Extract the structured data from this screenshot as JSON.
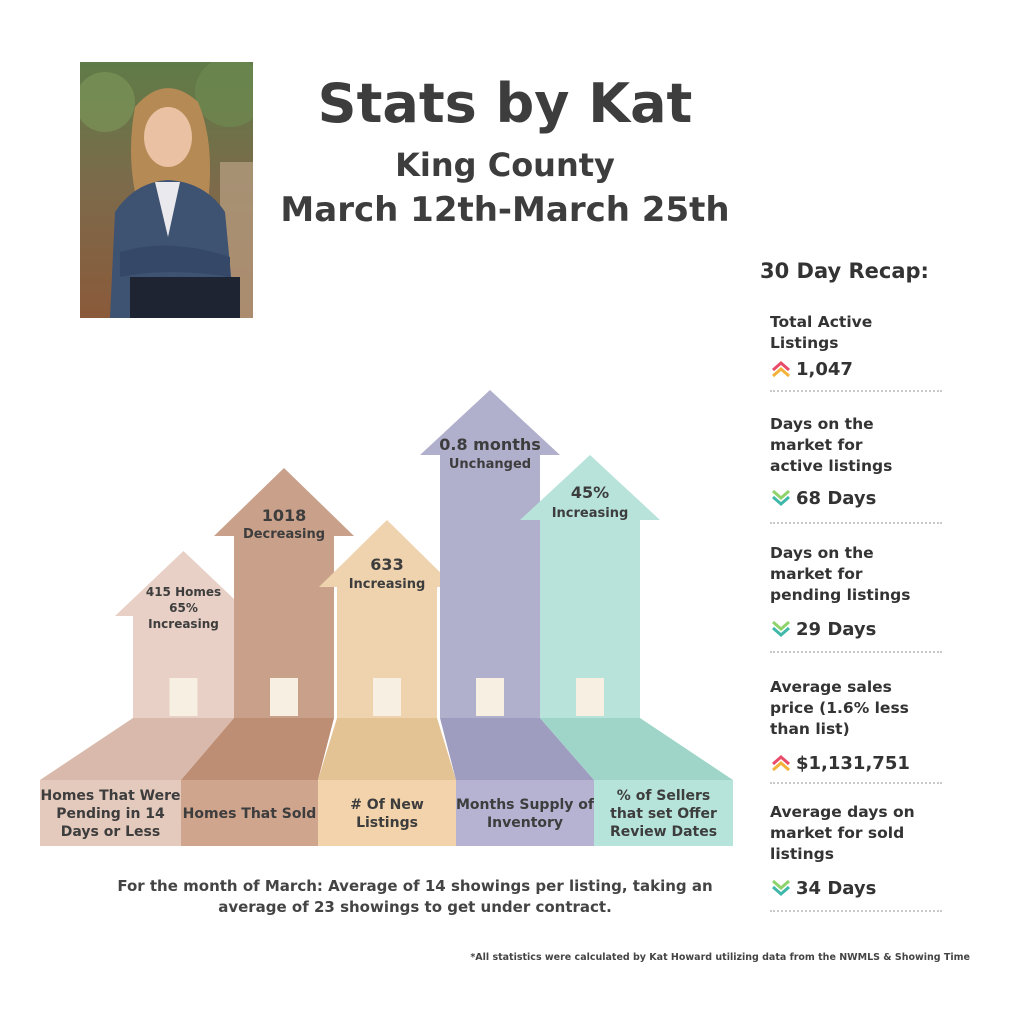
{
  "header": {
    "title": "Stats by Kat",
    "county": "King County",
    "dates": "March 12th-March 25th"
  },
  "recap": {
    "title": "30 Day Recap:",
    "items": [
      {
        "label": "Total Active Listings",
        "value": "1,047",
        "trend": "up"
      },
      {
        "label": "Days on the market for active listings",
        "value": "68 Days",
        "trend": "down"
      },
      {
        "label": "Days on the market for pending listings",
        "value": "29 Days",
        "trend": "down"
      },
      {
        "label": "Average sales price (1.6% less than list)",
        "value": "$1,131,751",
        "trend": "up"
      },
      {
        "label": "Average days on market for sold listings",
        "value": "34 Days",
        "trend": "down"
      }
    ]
  },
  "stats": [
    {
      "value_lines": [
        "415 Homes",
        "65%",
        "Increasing"
      ],
      "base_label": "Homes That Were Pending in 14 Days or Less",
      "colors": {
        "arrow": "#e8d0c6",
        "base": "#e4c9bd",
        "floor": "#d9b9ac"
      }
    },
    {
      "value_lines": [
        "1018",
        "Decreasing"
      ],
      "base_label": "Homes That Sold",
      "colors": {
        "arrow": "#c9a18a",
        "base": "#d0a58e",
        "floor": "#be8e74"
      }
    },
    {
      "value_lines": [
        "633",
        "Increasing"
      ],
      "base_label": "# Of New Listings",
      "colors": {
        "arrow": "#efd3ae",
        "base": "#f2d3ab",
        "floor": "#e3c293"
      }
    },
    {
      "value_lines": [
        "0.8 months",
        "Unchanged"
      ],
      "base_label": "Months Supply of Inventory",
      "colors": {
        "arrow": "#b0afcc",
        "base": "#b5b3d1",
        "floor": "#9e9cbf"
      }
    },
    {
      "value_lines": [
        "45%",
        "Increasing"
      ],
      "base_label": "% of Sellers that set Offer Review Dates",
      "colors": {
        "arrow": "#b7e3da",
        "base": "#b7e4da",
        "floor": "#9fd4c8"
      }
    }
  ],
  "footnote": "For the month of March: Average of 14 showings per listing, taking an average of 23 showings to get under contract.",
  "disclaimer": "*All statistics were calculated by Kat Howard utilizing data from the NWMLS & Showing Time",
  "icons": {
    "up": "double-chevron-up-icon",
    "down": "double-chevron-down-icon"
  },
  "accent_colors": {
    "up_top": "#e94b6a",
    "up_bottom": "#f4b23a",
    "down": "#3fb8a9",
    "down_light": "#8fd36b"
  }
}
